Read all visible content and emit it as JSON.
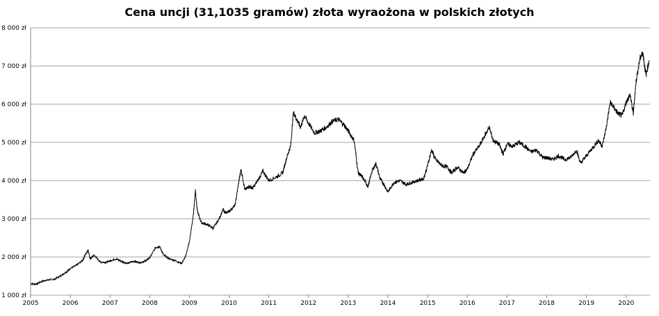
{
  "chart_data": {
    "type": "line",
    "title": "Cena uncji (31,1035 gramów) złota wyraożona w polskich złotych",
    "xlabel": "",
    "ylabel": "",
    "ylim": [
      1000,
      8000
    ],
    "xlim": [
      2005,
      2020.6
    ],
    "grid": "horizontal",
    "legend": "none",
    "line_color": "#000000",
    "y_ticks": [
      {
        "value": 1000,
        "label": "1 000 zł"
      },
      {
        "value": 2000,
        "label": "2 000 zł"
      },
      {
        "value": 3000,
        "label": "3 000 zł"
      },
      {
        "value": 4000,
        "label": "4 000 zł"
      },
      {
        "value": 5000,
        "label": "5 000 zł"
      },
      {
        "value": 6000,
        "label": "6 000 zł"
      },
      {
        "value": 7000,
        "label": "7 000 zł"
      },
      {
        "value": 8000,
        "label": "8 000 zł"
      }
    ],
    "x_ticks": [
      {
        "value": 2005,
        "label": "2005"
      },
      {
        "value": 2006,
        "label": "2006"
      },
      {
        "value": 2007,
        "label": "2007"
      },
      {
        "value": 2008,
        "label": "2008"
      },
      {
        "value": 2009,
        "label": "2009"
      },
      {
        "value": 2010,
        "label": "2010"
      },
      {
        "value": 2011,
        "label": "2011"
      },
      {
        "value": 2012,
        "label": "2012"
      },
      {
        "value": 2013,
        "label": "2013"
      },
      {
        "value": 2014,
        "label": "2014"
      },
      {
        "value": 2015,
        "label": "2015"
      },
      {
        "value": 2016,
        "label": "2016"
      },
      {
        "value": 2017,
        "label": "2017"
      },
      {
        "value": 2018,
        "label": "2018"
      },
      {
        "value": 2019,
        "label": "2019"
      },
      {
        "value": 2020,
        "label": "2020"
      }
    ],
    "series": [
      {
        "values": [
          [
            2005.0,
            1300
          ],
          [
            2005.15,
            1290
          ],
          [
            2005.3,
            1370
          ],
          [
            2005.45,
            1400
          ],
          [
            2005.6,
            1420
          ],
          [
            2005.75,
            1500
          ],
          [
            2005.9,
            1610
          ],
          [
            2006.0,
            1700
          ],
          [
            2006.15,
            1780
          ],
          [
            2006.3,
            1900
          ],
          [
            2006.4,
            2100
          ],
          [
            2006.45,
            2180
          ],
          [
            2006.5,
            1950
          ],
          [
            2006.6,
            2050
          ],
          [
            2006.75,
            1870
          ],
          [
            2006.9,
            1860
          ],
          [
            2007.0,
            1900
          ],
          [
            2007.15,
            1950
          ],
          [
            2007.3,
            1880
          ],
          [
            2007.45,
            1830
          ],
          [
            2007.6,
            1890
          ],
          [
            2007.75,
            1850
          ],
          [
            2007.9,
            1900
          ],
          [
            2008.0,
            1980
          ],
          [
            2008.15,
            2250
          ],
          [
            2008.25,
            2270
          ],
          [
            2008.35,
            2050
          ],
          [
            2008.5,
            1950
          ],
          [
            2008.65,
            1900
          ],
          [
            2008.8,
            1830
          ],
          [
            2008.9,
            2000
          ],
          [
            2009.0,
            2400
          ],
          [
            2009.1,
            3100
          ],
          [
            2009.15,
            3750
          ],
          [
            2009.2,
            3200
          ],
          [
            2009.3,
            2900
          ],
          [
            2009.45,
            2850
          ],
          [
            2009.6,
            2750
          ],
          [
            2009.75,
            3000
          ],
          [
            2009.85,
            3250
          ],
          [
            2009.9,
            3150
          ],
          [
            2010.0,
            3200
          ],
          [
            2010.15,
            3350
          ],
          [
            2010.25,
            4000
          ],
          [
            2010.3,
            4300
          ],
          [
            2010.4,
            3750
          ],
          [
            2010.5,
            3850
          ],
          [
            2010.6,
            3800
          ],
          [
            2010.75,
            4050
          ],
          [
            2010.85,
            4250
          ],
          [
            2011.0,
            4000
          ],
          [
            2011.2,
            4100
          ],
          [
            2011.35,
            4200
          ],
          [
            2011.45,
            4600
          ],
          [
            2011.55,
            4900
          ],
          [
            2011.62,
            5800
          ],
          [
            2011.7,
            5600
          ],
          [
            2011.8,
            5400
          ],
          [
            2011.9,
            5700
          ],
          [
            2012.0,
            5500
          ],
          [
            2012.15,
            5250
          ],
          [
            2012.3,
            5300
          ],
          [
            2012.45,
            5400
          ],
          [
            2012.6,
            5550
          ],
          [
            2012.75,
            5600
          ],
          [
            2012.9,
            5450
          ],
          [
            2013.0,
            5300
          ],
          [
            2013.15,
            5050
          ],
          [
            2013.25,
            4200
          ],
          [
            2013.35,
            4100
          ],
          [
            2013.5,
            3850
          ],
          [
            2013.6,
            4250
          ],
          [
            2013.7,
            4450
          ],
          [
            2013.8,
            4050
          ],
          [
            2013.9,
            3900
          ],
          [
            2014.0,
            3700
          ],
          [
            2014.15,
            3950
          ],
          [
            2014.3,
            4000
          ],
          [
            2014.45,
            3900
          ],
          [
            2014.6,
            3950
          ],
          [
            2014.75,
            4000
          ],
          [
            2014.9,
            4050
          ],
          [
            2015.0,
            4400
          ],
          [
            2015.1,
            4800
          ],
          [
            2015.2,
            4550
          ],
          [
            2015.35,
            4400
          ],
          [
            2015.5,
            4350
          ],
          [
            2015.6,
            4200
          ],
          [
            2015.75,
            4350
          ],
          [
            2015.9,
            4200
          ],
          [
            2016.0,
            4300
          ],
          [
            2016.15,
            4700
          ],
          [
            2016.3,
            4900
          ],
          [
            2016.45,
            5200
          ],
          [
            2016.55,
            5400
          ],
          [
            2016.65,
            5050
          ],
          [
            2016.8,
            4950
          ],
          [
            2016.9,
            4700
          ],
          [
            2017.0,
            4950
          ],
          [
            2017.15,
            4900
          ],
          [
            2017.3,
            5000
          ],
          [
            2017.45,
            4900
          ],
          [
            2017.6,
            4750
          ],
          [
            2017.75,
            4800
          ],
          [
            2017.9,
            4600
          ],
          [
            2018.0,
            4600
          ],
          [
            2018.15,
            4550
          ],
          [
            2018.3,
            4650
          ],
          [
            2018.45,
            4550
          ],
          [
            2018.6,
            4600
          ],
          [
            2018.75,
            4800
          ],
          [
            2018.85,
            4450
          ],
          [
            2019.0,
            4650
          ],
          [
            2019.15,
            4850
          ],
          [
            2019.3,
            5050
          ],
          [
            2019.4,
            4900
          ],
          [
            2019.5,
            5400
          ],
          [
            2019.6,
            6050
          ],
          [
            2019.7,
            5900
          ],
          [
            2019.8,
            5750
          ],
          [
            2019.9,
            5700
          ],
          [
            2020.0,
            6050
          ],
          [
            2020.1,
            6250
          ],
          [
            2020.18,
            5750
          ],
          [
            2020.25,
            6600
          ],
          [
            2020.35,
            7200
          ],
          [
            2020.42,
            7350
          ],
          [
            2020.5,
            6750
          ],
          [
            2020.58,
            7150
          ]
        ]
      }
    ]
  }
}
